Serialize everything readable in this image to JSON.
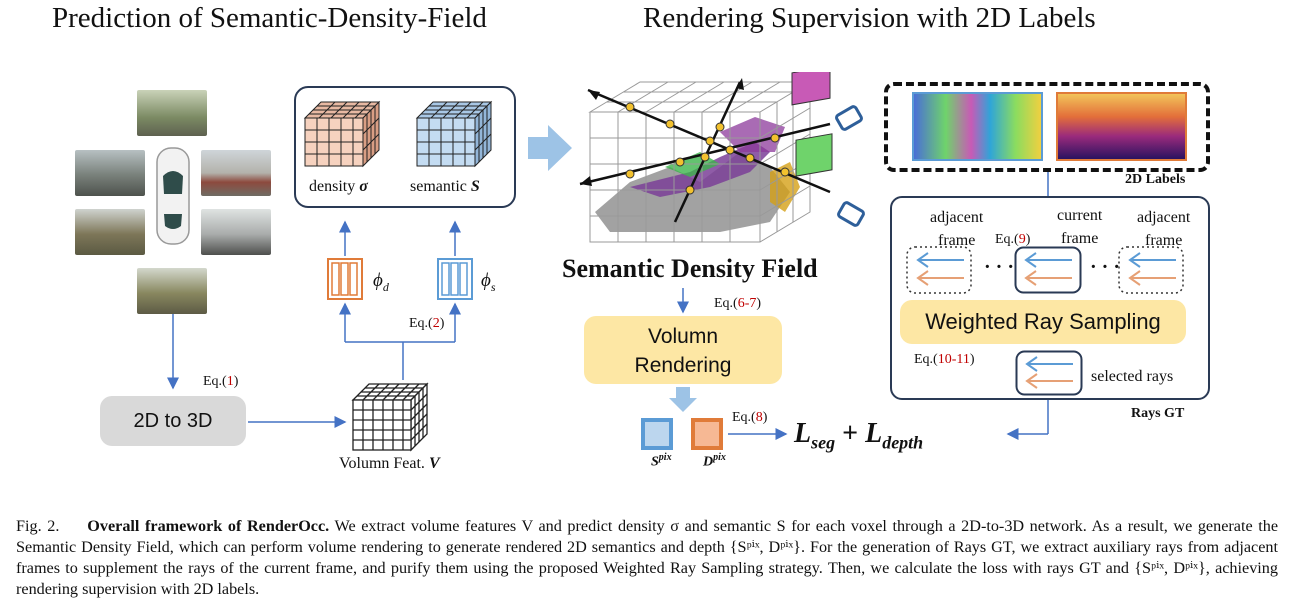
{
  "headings": {
    "left": "Prediction of  Semantic-Density-Field",
    "right": "Rendering Supervision with 2D Labels"
  },
  "left_panel": {
    "density_label": "density",
    "density_symbol": "σ",
    "semantic_label": "semantic",
    "semantic_symbol": "S",
    "phi_d": "ϕ",
    "phi_d_sub": "d",
    "phi_s": "ϕ",
    "phi_s_sub": "s",
    "eq2": "Eq.(",
    "eq2_num": "2",
    "eq1": "Eq.(",
    "eq1_num": "1",
    "to3d_label": "2D to 3D",
    "volume_feat_label": "Volumn Feat.",
    "volume_feat_symbol": "V"
  },
  "middle": {
    "field_title": "Semantic Density Field",
    "eq67": "Eq.(",
    "eq67_num": "6-7",
    "rendering_line1": "Volumn",
    "rendering_line2": "Rendering",
    "eq8": "Eq.(",
    "eq8_num": "8",
    "s_pix": "S",
    "s_pix_sup": "pix",
    "d_pix": "D",
    "d_pix_sup": "pix",
    "loss_seg": "L",
    "loss_seg_sub": "seg",
    "loss_plus": "+",
    "loss_depth": "L",
    "loss_depth_sub": "depth"
  },
  "right_panel": {
    "labels_title": "2D Labels",
    "adjacent_left": [
      "adjacent",
      "frame"
    ],
    "current": [
      "current",
      "frame"
    ],
    "adjacent_right": [
      "adjacent",
      "frame"
    ],
    "eq9": "Eq.(",
    "eq9_num": "9",
    "dots1": "· · ·",
    "dots2": "· · ·",
    "wrs_label": "Weighted Ray Sampling",
    "eq1011": "Eq.(",
    "eq1011_num": "10-11",
    "selected_rays": "selected rays",
    "rays_gt": "Rays GT"
  },
  "caption": {
    "fig": "Fig. 2.",
    "title": "Overall framework of RenderOcc.",
    "text": " We extract volume features V and predict density σ and semantic S for each voxel through a 2D-to-3D network. As a result, we generate the Semantic Density Field, which can perform volume rendering to generate rendered 2D semantics and depth {Sᵖⁱˣ, Dᵖⁱˣ}. For the generation of Rays GT, we extract auxiliary rays from adjacent frames to supplement the rays of the current frame, and purify them using the proposed Weighted Ray Sampling strategy. Then, we calculate the loss with rays GT and {Sᵖⁱˣ, Dᵖⁱˣ}, achieving rendering supervision with 2D labels."
  },
  "colors": {
    "arrow": "#4472c4",
    "density_cube": "#f6d2bf",
    "semantic_cube": "#c4dcf2",
    "phi_d_border": "#e07b39",
    "phi_s_border": "#5b9bd5",
    "yellow_box": "#fde7a4",
    "gray_box": "#d9d9d9",
    "s_pix_fill": "#bcd6ee",
    "s_pix_border": "#5b9bd5",
    "d_pix_fill": "#f6b894",
    "d_pix_border": "#e07b39",
    "eq_number": "#c00000"
  }
}
